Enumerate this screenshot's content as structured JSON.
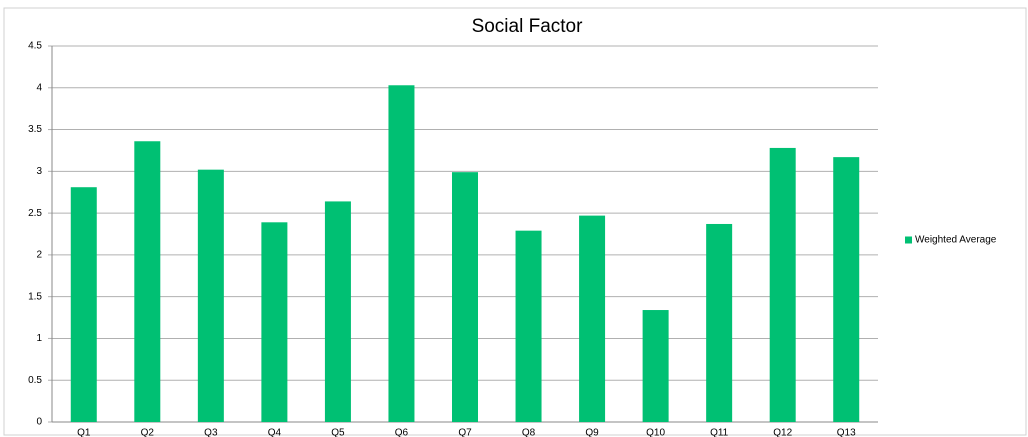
{
  "chart_data": {
    "type": "bar",
    "title": "Social Factor",
    "categories": [
      "Q1",
      "Q2",
      "Q3",
      "Q4",
      "Q5",
      "Q6",
      "Q7",
      "Q8",
      "Q9",
      "Q10",
      "Q11",
      "Q12",
      "Q13"
    ],
    "series": [
      {
        "name": "Weighted Average",
        "color": "#00c073",
        "values": [
          2.81,
          3.36,
          3.02,
          2.39,
          2.64,
          4.03,
          2.99,
          2.29,
          2.47,
          1.34,
          2.37,
          3.28,
          3.17
        ]
      }
    ],
    "ylim": [
      0,
      4.5
    ],
    "yticks": [
      0,
      0.5,
      1,
      1.5,
      2,
      2.5,
      3,
      3.5,
      4,
      4.5
    ],
    "grid": true,
    "legend": "right"
  }
}
